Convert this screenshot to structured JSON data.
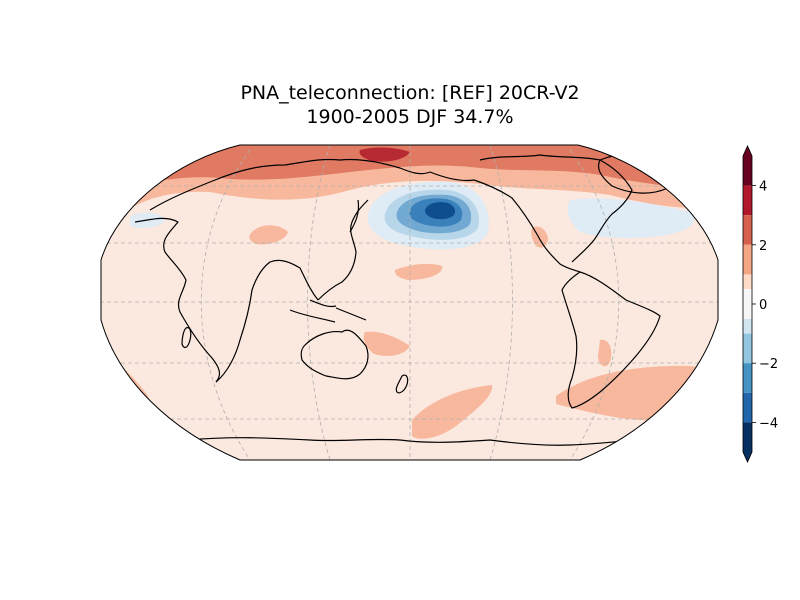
{
  "title_line1": "PNA_teleconnection: [REF] 20CR-V2",
  "title_line2": "1900-2005 DJF 34.7%",
  "colorbar": {
    "ticks": [
      "4",
      "2",
      "0",
      "−2",
      "−4"
    ],
    "levels": [
      5,
      4,
      3,
      2,
      1,
      0.5,
      -0.5,
      -1,
      -2,
      -3,
      -4,
      -5
    ],
    "colors": [
      "#67001f",
      "#b2182b",
      "#d6604d",
      "#f4a582",
      "#fddbc7",
      "#f7f7f7",
      "#d1e5f0",
      "#92c5de",
      "#4393c3",
      "#2166ac",
      "#053061"
    ],
    "extend": "both"
  },
  "palette": {
    "background": "#fbe8df",
    "light_red": "#f7b89e",
    "mid_red": "#e07a62",
    "dark_red": "#b72a33",
    "light_blue": "#dfebf5",
    "blue1": "#b7d6ea",
    "blue2": "#72a9d2",
    "blue3": "#3a80bb",
    "blue4": "#0e4d8e"
  }
}
